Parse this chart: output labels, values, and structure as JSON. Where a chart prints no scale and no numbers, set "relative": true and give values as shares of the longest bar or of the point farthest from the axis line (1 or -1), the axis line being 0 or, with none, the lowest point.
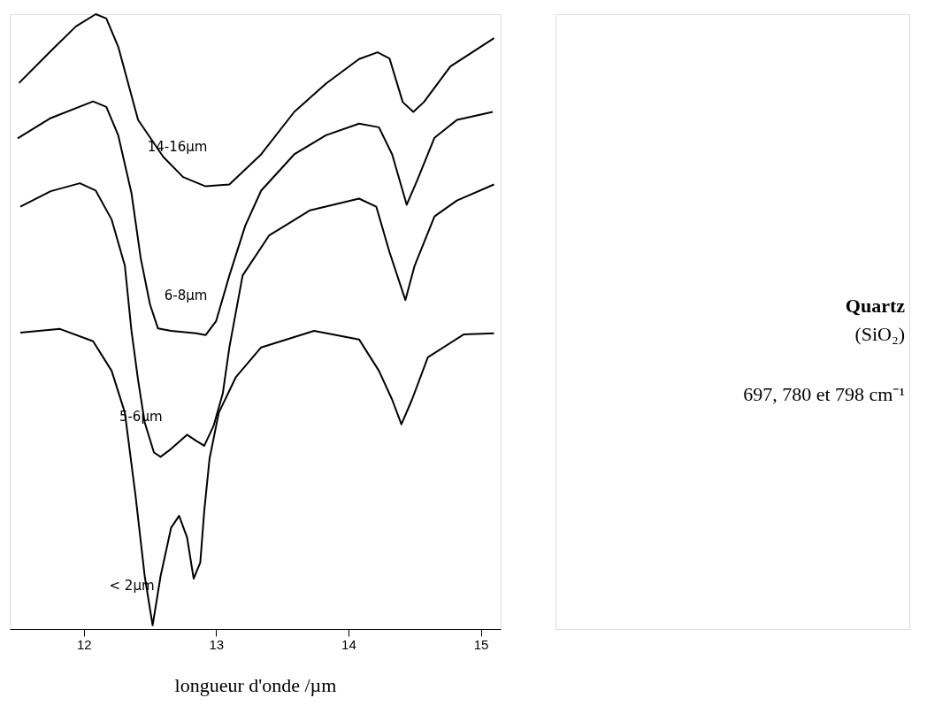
{
  "chart_data": {
    "type": "line",
    "relative": true,
    "xlabel": "longueur d'onde /µm",
    "xlim": [
      11.44,
      15.15
    ],
    "xticks": [
      12,
      13,
      14,
      15
    ],
    "grid": false,
    "line_style": "solid",
    "marker": "none",
    "series": [
      {
        "name": "14-16µm",
        "color": "#000000",
        "x": [
          11.51,
          11.75,
          11.94,
          12.09,
          12.17,
          12.26,
          12.41,
          12.6,
          12.75,
          12.92,
          13.1,
          13.34,
          13.59,
          13.83,
          14.08,
          14.22,
          14.31,
          14.41,
          14.49,
          14.57,
          14.77,
          15.1
        ],
        "values": [
          0.888,
          0.94,
          0.98,
          1.0,
          0.993,
          0.947,
          0.828,
          0.768,
          0.735,
          0.72,
          0.723,
          0.772,
          0.841,
          0.887,
          0.927,
          0.938,
          0.928,
          0.857,
          0.841,
          0.857,
          0.915,
          0.961
        ]
      },
      {
        "name": "6-8µm",
        "color": "#000000",
        "x": [
          11.5,
          11.75,
          12.07,
          12.17,
          12.26,
          12.36,
          12.43,
          12.5,
          12.56,
          12.66,
          12.85,
          12.92,
          13.0,
          13.1,
          13.22,
          13.34,
          13.59,
          13.83,
          14.08,
          14.23,
          14.33,
          14.44,
          14.52,
          14.65,
          14.82,
          15.09
        ],
        "values": [
          0.798,
          0.831,
          0.858,
          0.849,
          0.803,
          0.709,
          0.603,
          0.528,
          0.489,
          0.485,
          0.481,
          0.478,
          0.501,
          0.575,
          0.656,
          0.713,
          0.772,
          0.803,
          0.822,
          0.816,
          0.772,
          0.69,
          0.73,
          0.799,
          0.828,
          0.841
        ]
      },
      {
        "name": "5-6µm",
        "color": "#000000",
        "x": [
          11.52,
          11.75,
          11.97,
          12.09,
          12.21,
          12.31,
          12.36,
          12.41,
          12.46,
          12.53,
          12.58,
          12.66,
          12.78,
          12.85,
          12.91,
          12.98,
          13.05,
          13.1,
          13.2,
          13.4,
          13.71,
          14.08,
          14.21,
          14.31,
          14.43,
          14.5,
          14.65,
          14.82,
          15.1
        ],
        "values": [
          0.687,
          0.712,
          0.725,
          0.713,
          0.666,
          0.591,
          0.485,
          0.405,
          0.336,
          0.287,
          0.28,
          0.293,
          0.316,
          0.306,
          0.298,
          0.33,
          0.383,
          0.458,
          0.575,
          0.64,
          0.681,
          0.7,
          0.687,
          0.613,
          0.535,
          0.591,
          0.671,
          0.697,
          0.723
        ]
      },
      {
        "name": "< 2µm",
        "color": "#000000",
        "x": [
          11.52,
          11.82,
          12.07,
          12.21,
          12.31,
          12.39,
          12.46,
          12.52,
          12.58,
          12.66,
          12.72,
          12.78,
          12.83,
          12.88,
          12.91,
          12.95,
          13.02,
          13.15,
          13.34,
          13.74,
          14.08,
          14.23,
          14.33,
          14.4,
          14.48,
          14.6,
          14.87,
          15.1
        ],
        "values": [
          0.482,
          0.488,
          0.468,
          0.42,
          0.352,
          0.218,
          0.086,
          0.006,
          0.086,
          0.165,
          0.184,
          0.149,
          0.082,
          0.108,
          0.192,
          0.277,
          0.352,
          0.41,
          0.458,
          0.485,
          0.471,
          0.42,
          0.373,
          0.333,
          0.373,
          0.442,
          0.479,
          0.481
        ]
      }
    ],
    "annotations": [
      "Quartz",
      "(SiO₂)",
      "697, 780 et 798 cm⁻¹"
    ]
  }
}
